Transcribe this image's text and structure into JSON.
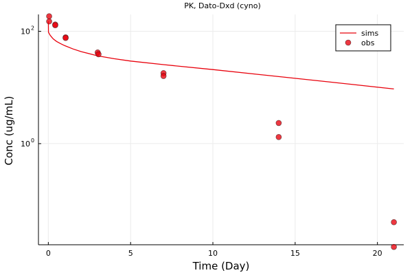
{
  "chart_data": {
    "type": "scatter",
    "title": "PK, Dato-Dxd (cyno)",
    "xlabel": "Time (Day)",
    "ylabel": "Conc (ug/mL)",
    "xlim": [
      -0.6,
      21.6
    ],
    "ylim_log10": [
      -1.8,
      2.3
    ],
    "yscale": "log",
    "x_ticks": [
      0,
      5,
      10,
      15,
      20
    ],
    "y_ticks": [
      {
        "value": 1,
        "mantissa": "10",
        "exponent": "0"
      },
      {
        "value": 100,
        "mantissa": "10",
        "exponent": "2"
      }
    ],
    "grid": true,
    "legend_position": "top-right",
    "series": [
      {
        "name": "sims",
        "kind": "line",
        "color": "#e8000b",
        "x": [
          0,
          0.01,
          0.1,
          0.2,
          0.3,
          0.5,
          0.75,
          1.0,
          1.5,
          2,
          3,
          4,
          5,
          7,
          10,
          14,
          17,
          21
        ],
        "y": [
          150,
          96,
          86,
          79,
          73,
          66,
          60,
          55.5,
          48.5,
          43.5,
          36.5,
          32.5,
          29.5,
          25.5,
          20.8,
          15.6,
          12.6,
          9.4
        ]
      },
      {
        "name": "obs",
        "kind": "scatter",
        "color": "#e8000b",
        "x": [
          0.05,
          0.05,
          0.42,
          0.42,
          1.05,
          1.05,
          3.0,
          3.05,
          7.0,
          7.0,
          14.0,
          14.0,
          21.0,
          21.0
        ],
        "y": [
          185,
          150,
          132,
          128,
          78,
          76,
          42,
          39,
          18.0,
          16.0,
          2.33,
          1.31,
          0.04,
          0.0145
        ]
      }
    ]
  }
}
